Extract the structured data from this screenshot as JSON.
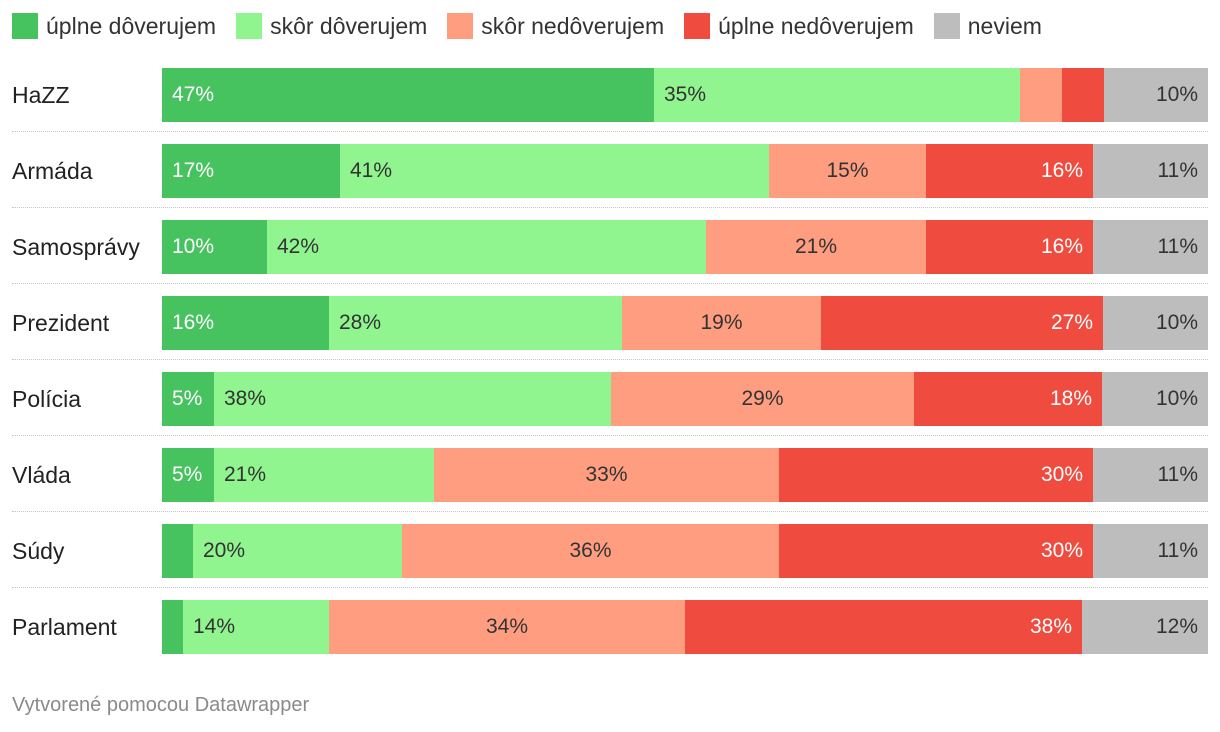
{
  "chart_data": {
    "type": "bar",
    "orientation": "horizontal",
    "stacked": true,
    "legend_position": "top-left",
    "categories": [
      "HaZZ",
      "Armáda",
      "Samosprávy",
      "Prezident",
      "Polícia",
      "Vláda",
      "Súdy",
      "Parlament"
    ],
    "series": [
      {
        "name": "úplne dôverujem",
        "color": "#46c25f",
        "text_color": "#ffffff",
        "align": "left",
        "values": [
          47,
          17,
          10,
          16,
          5,
          5,
          3,
          2
        ],
        "labels": [
          "47%",
          "17%",
          "10%",
          "16%",
          "5%",
          "5%",
          "",
          ""
        ]
      },
      {
        "name": "skôr dôverujem",
        "color": "#90f48f",
        "text_color": "#333333",
        "align": "left",
        "values": [
          35,
          41,
          42,
          28,
          38,
          21,
          20,
          14
        ],
        "labels": [
          "35%",
          "41%",
          "42%",
          "28%",
          "38%",
          "21%",
          "20%",
          "14%"
        ]
      },
      {
        "name": "skôr nedôverujem",
        "color": "#fe9d80",
        "text_color": "#333333",
        "align": "center",
        "values": [
          4,
          15,
          21,
          19,
          29,
          33,
          36,
          34
        ],
        "labels": [
          "",
          "15%",
          "21%",
          "19%",
          "29%",
          "33%",
          "36%",
          "34%"
        ]
      },
      {
        "name": "úplne nedôverujem",
        "color": "#ef4b3f",
        "text_color": "#ffffff",
        "align": "right",
        "values": [
          4,
          16,
          16,
          27,
          18,
          30,
          30,
          38
        ],
        "labels": [
          "",
          "16%",
          "16%",
          "27%",
          "18%",
          "30%",
          "30%",
          "38%"
        ]
      },
      {
        "name": "neviem",
        "color": "#bdbdbd",
        "text_color": "#333333",
        "align": "right",
        "values": [
          10,
          11,
          11,
          10,
          10,
          11,
          11,
          12
        ],
        "labels": [
          "10%",
          "11%",
          "11%",
          "10%",
          "10%",
          "11%",
          "11%",
          "12%"
        ]
      }
    ]
  },
  "footer": {
    "credit": "Vytvorené pomocou Datawrapper"
  }
}
